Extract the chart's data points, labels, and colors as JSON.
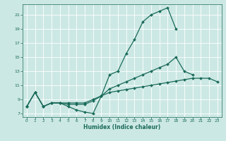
{
  "title": "",
  "xlabel": "Humidex (Indice chaleur)",
  "ylabel": "",
  "background_color": "#cce8e4",
  "grid_color": "#ffffff",
  "line_color": "#1a6b5a",
  "xlim": [
    -0.5,
    23.5
  ],
  "ylim": [
    6.5,
    22.5
  ],
  "yticks": [
    7,
    9,
    11,
    13,
    15,
    17,
    19,
    21
  ],
  "xticks": [
    0,
    1,
    2,
    3,
    4,
    5,
    6,
    7,
    8,
    9,
    10,
    11,
    12,
    13,
    14,
    15,
    16,
    17,
    18,
    19,
    20,
    21,
    22,
    23
  ],
  "series": [
    {
      "x": [
        0,
        1,
        2,
        3,
        4,
        5,
        6,
        7,
        8,
        9,
        10,
        11,
        12,
        13,
        14,
        15,
        16,
        17,
        18,
        19,
        20,
        21,
        22,
        23
      ],
      "y": [
        8,
        10,
        8,
        8.5,
        8.5,
        8.0,
        7.5,
        7.2,
        7.0,
        9.5,
        12.5,
        13.0,
        15.5,
        17.5,
        20.0,
        21.0,
        21.5,
        22.0,
        19.0,
        null,
        null,
        null,
        null,
        null
      ]
    },
    {
      "x": [
        0,
        1,
        2,
        3,
        4,
        5,
        6,
        7,
        8,
        9,
        10,
        11,
        12,
        13,
        14,
        15,
        16,
        17,
        18,
        19,
        20,
        21,
        22,
        23
      ],
      "y": [
        8,
        10,
        8,
        8.5,
        8.5,
        8.3,
        8.3,
        8.3,
        8.8,
        9.5,
        10.5,
        11.0,
        11.5,
        12.0,
        12.5,
        13.0,
        13.5,
        14.0,
        15.0,
        13.0,
        12.5,
        null,
        null,
        null
      ]
    },
    {
      "x": [
        0,
        1,
        2,
        3,
        4,
        5,
        6,
        7,
        8,
        9,
        10,
        11,
        12,
        13,
        14,
        15,
        16,
        17,
        18,
        19,
        20,
        21,
        22,
        23
      ],
      "y": [
        8,
        10,
        8,
        8.5,
        8.5,
        8.5,
        8.5,
        8.5,
        9.0,
        9.5,
        10.0,
        10.2,
        10.4,
        10.6,
        10.8,
        11.0,
        11.2,
        11.4,
        11.6,
        11.8,
        12.0,
        12.0,
        12.0,
        11.5
      ]
    }
  ]
}
